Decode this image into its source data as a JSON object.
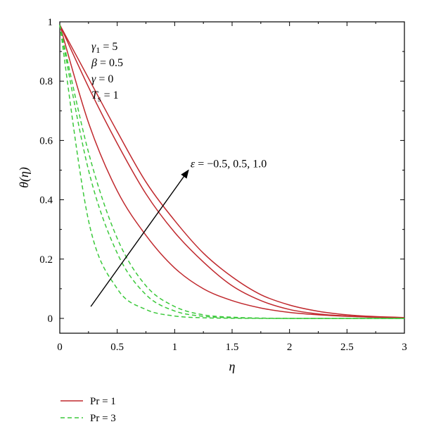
{
  "chart_data": {
    "type": "line",
    "title": "",
    "xlabel": "η",
    "ylabel": "θ(η)",
    "xlim": [
      0,
      3
    ],
    "ylim": [
      -0.05,
      1.0
    ],
    "xticks": [
      0,
      0.5,
      1,
      1.5,
      2,
      2.5,
      3
    ],
    "xtick_labels": [
      "0",
      "0.5",
      "1",
      "1.5",
      "2",
      "2.5",
      "3"
    ],
    "yticks": [
      0,
      0.2,
      0.4,
      0.6,
      0.8,
      1
    ],
    "ytick_labels": [
      "0",
      "0.2",
      "0.4",
      "0.6",
      "0.8",
      "1"
    ],
    "grid": false,
    "legend_position": "bottom-left",
    "x": [
      0,
      0.25,
      0.5,
      0.75,
      1.0,
      1.25,
      1.5,
      1.75,
      2.0,
      2.25,
      2.5,
      2.75,
      3.0
    ],
    "series": [
      {
        "name": "Pr = 1",
        "group": "Pr = 1",
        "epsilon": -0.5,
        "color": "#c0282d",
        "dash": "solid",
        "values": [
          0.99,
          0.66,
          0.43,
          0.28,
          0.17,
          0.1,
          0.06,
          0.035,
          0.02,
          0.012,
          0.007,
          0.004,
          0.002
        ]
      },
      {
        "name": "Pr = 1",
        "group": "Pr = 1",
        "epsilon": 0.5,
        "color": "#c0282d",
        "dash": "solid",
        "values": [
          0.99,
          0.78,
          0.59,
          0.42,
          0.29,
          0.19,
          0.11,
          0.06,
          0.03,
          0.015,
          0.008,
          0.004,
          0.002
        ]
      },
      {
        "name": "Pr = 1",
        "group": "Pr = 1",
        "epsilon": 1.0,
        "color": "#c0282d",
        "dash": "solid",
        "values": [
          0.99,
          0.81,
          0.63,
          0.46,
          0.33,
          0.22,
          0.14,
          0.08,
          0.045,
          0.024,
          0.012,
          0.006,
          0.003
        ]
      },
      {
        "name": "Pr = 3",
        "group": "Pr = 3",
        "epsilon": -0.5,
        "color": "#3cc93c",
        "dash": "dashed",
        "values": [
          0.99,
          0.33,
          0.1,
          0.03,
          0.008,
          0.002,
          0.0005,
          0.0,
          0.0,
          0.0,
          0.0,
          0.0,
          0.0
        ]
      },
      {
        "name": "Pr = 3",
        "group": "Pr = 3",
        "epsilon": 0.5,
        "color": "#3cc93c",
        "dash": "dashed",
        "values": [
          0.99,
          0.5,
          0.22,
          0.08,
          0.025,
          0.007,
          0.002,
          0.0005,
          0.0,
          0.0,
          0.0,
          0.0,
          0.0
        ]
      },
      {
        "name": "Pr = 3",
        "group": "Pr = 3",
        "epsilon": 1.0,
        "color": "#3cc93c",
        "dash": "dashed",
        "values": [
          0.99,
          0.56,
          0.27,
          0.11,
          0.04,
          0.012,
          0.004,
          0.001,
          0.0,
          0.0,
          0.0,
          0.0,
          0.0
        ]
      }
    ],
    "legend": [
      {
        "label": "Pr = 1",
        "color": "#c0282d",
        "dash": "solid"
      },
      {
        "label": "Pr = 3",
        "color": "#3cc93c",
        "dash": "dashed"
      }
    ],
    "annotations": {
      "params": [
        {
          "symbol": "γ",
          "sub": "1",
          "rest": " = 5"
        },
        {
          "symbol": "β",
          "sub": "",
          "rest": " = 0.5"
        },
        {
          "symbol": "γ",
          "sub": "",
          "rest": " = 0"
        },
        {
          "symbol": "T",
          "sub": "s",
          "rest": " = 1"
        }
      ],
      "arrow": {
        "from": [
          0.27,
          0.04
        ],
        "to": [
          1.12,
          0.5
        ],
        "symbol": "ε",
        "text": " = −0.5, 0.5, 1.0"
      }
    }
  }
}
